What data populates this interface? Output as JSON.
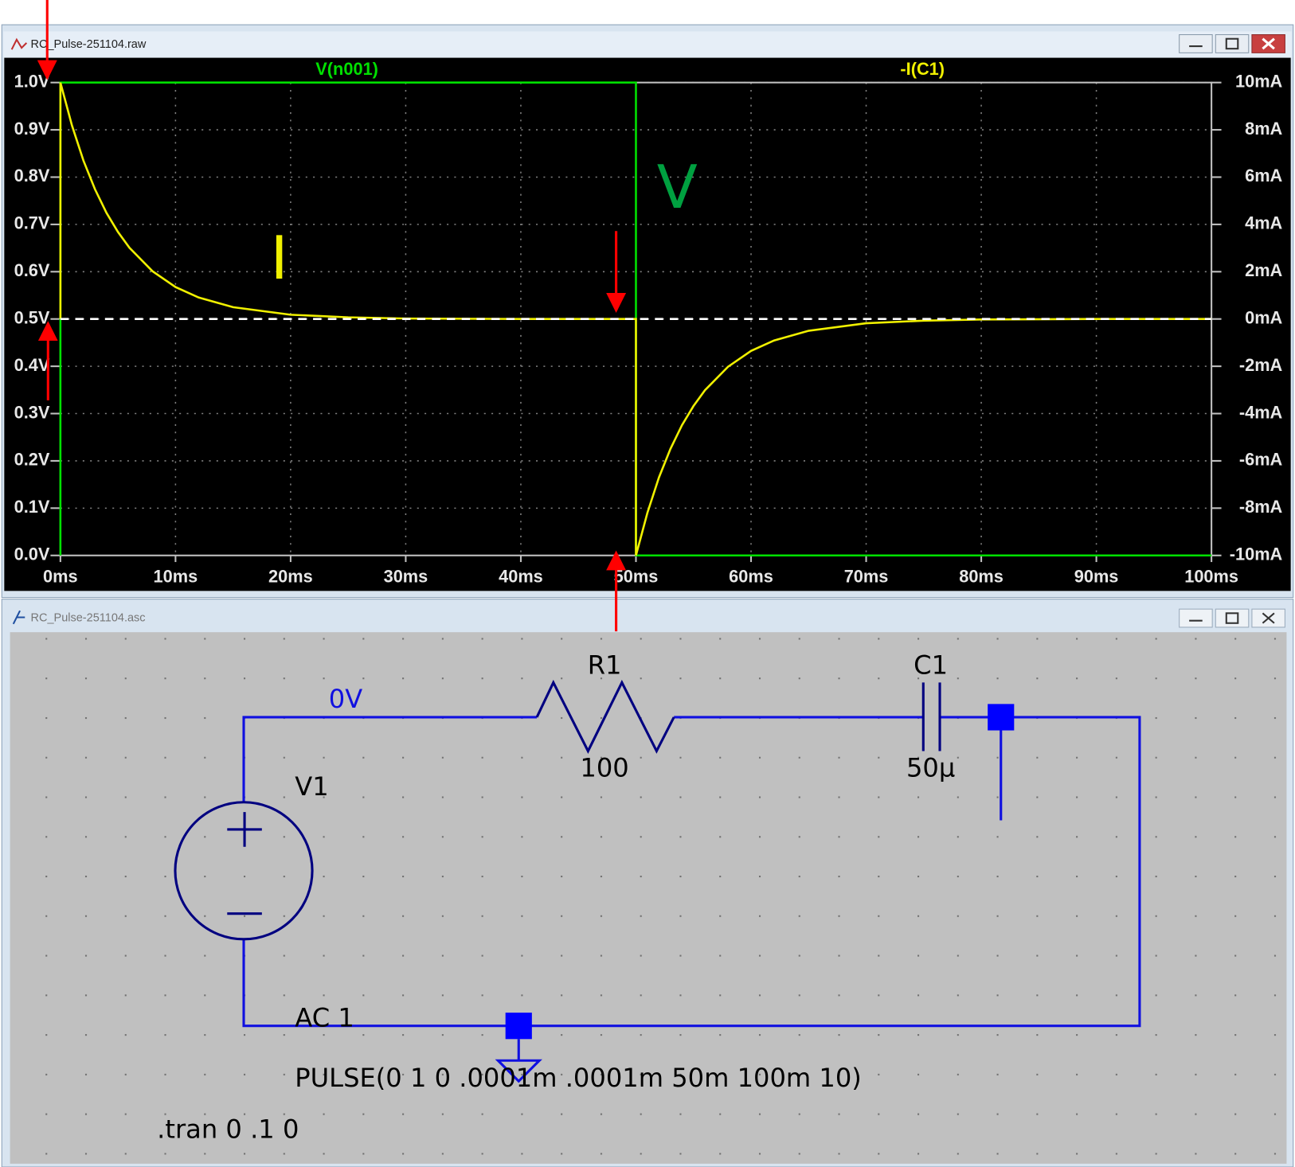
{
  "plot_window": {
    "title": "RC_Pulse-251104.raw"
  },
  "chart_data": {
    "type": "line",
    "xlim": [
      0,
      100
    ],
    "xticks": [
      {
        "value": 0,
        "label": "0ms"
      },
      {
        "value": 10,
        "label": "10ms"
      },
      {
        "value": 20,
        "label": "20ms"
      },
      {
        "value": 30,
        "label": "30ms"
      },
      {
        "value": 40,
        "label": "40ms"
      },
      {
        "value": 50,
        "label": "50ms"
      },
      {
        "value": 60,
        "label": "60ms"
      },
      {
        "value": 70,
        "label": "70ms"
      },
      {
        "value": 80,
        "label": "80ms"
      },
      {
        "value": 90,
        "label": "90ms"
      },
      {
        "value": 100,
        "label": "100ms"
      }
    ],
    "ylim": [
      0,
      1
    ],
    "yticks": [
      {
        "value": 0,
        "label": "0.0V"
      },
      {
        "value": 0.1,
        "label": "0.1V"
      },
      {
        "value": 0.2,
        "label": "0.2V"
      },
      {
        "value": 0.3,
        "label": "0.3V"
      },
      {
        "value": 0.4,
        "label": "0.4V"
      },
      {
        "value": 0.5,
        "label": "0.5V"
      },
      {
        "value": 0.6,
        "label": "0.6V"
      },
      {
        "value": 0.7,
        "label": "0.7V"
      },
      {
        "value": 0.8,
        "label": "0.8V"
      },
      {
        "value": 0.9,
        "label": "0.9V"
      },
      {
        "value": 1,
        "label": "1.0V"
      }
    ],
    "y2lim": [
      -10,
      10
    ],
    "y2ticks": [
      {
        "value": 10,
        "label": "10mA"
      },
      {
        "value": 8,
        "label": "8mA"
      },
      {
        "value": 6,
        "label": "6mA"
      },
      {
        "value": 4,
        "label": "4mA"
      },
      {
        "value": 2,
        "label": "2mA"
      },
      {
        "value": 0,
        "label": "0mA"
      },
      {
        "value": -2,
        "label": "-2mA"
      },
      {
        "value": -4,
        "label": "-4mA"
      },
      {
        "value": -6,
        "label": "-6mA"
      },
      {
        "value": -8,
        "label": "-8mA"
      },
      {
        "value": -10,
        "label": "-10mA"
      }
    ],
    "grid": true,
    "series": [
      {
        "name": "V(n001)",
        "color": "#00e000",
        "x": [
          0,
          0,
          50,
          50,
          100
        ],
        "values": [
          0,
          1,
          1,
          0,
          0
        ]
      },
      {
        "name": "-I(C1)",
        "color": "#f0f000",
        "axis": "y2",
        "x": [
          0,
          0,
          1,
          2,
          3,
          4,
          5,
          6,
          8,
          10,
          12,
          15,
          20,
          25,
          30,
          40,
          50,
          50,
          51,
          52,
          53,
          54,
          55,
          56,
          58,
          60,
          62,
          65,
          70,
          75,
          80,
          90,
          100
        ],
        "values": [
          0,
          10,
          8.19,
          6.7,
          5.49,
          4.49,
          3.68,
          3.01,
          2.02,
          1.35,
          0.91,
          0.5,
          0.18,
          0.07,
          0.02,
          0,
          0,
          -10,
          -8.19,
          -6.7,
          -5.49,
          -4.49,
          -3.68,
          -3.01,
          -2.02,
          -1.35,
          -0.91,
          -0.5,
          -0.18,
          -0.07,
          -0.02,
          0,
          0
        ]
      }
    ],
    "annotations": [
      "I",
      "V"
    ]
  },
  "schematic_window": {
    "title": "RC_Pulse-251104.asc",
    "net_label": "0V",
    "resistor": {
      "name": "R1",
      "value": "100"
    },
    "capacitor": {
      "name": "C1",
      "value": "50µ"
    },
    "source": {
      "name": "V1",
      "ac": "AC 1",
      "value": "PULSE(0 1 0 .0001m .0001m 50m 100m 10)"
    },
    "directive": ".tran 0 .1 0"
  }
}
